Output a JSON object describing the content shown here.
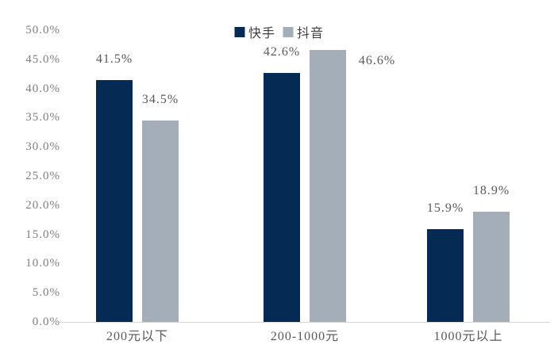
{
  "chart_data": {
    "type": "bar",
    "title": "",
    "categories": [
      "200元以下",
      "200-1000元",
      "1000元以上"
    ],
    "series": [
      {
        "name": "快手",
        "color": "#052a54",
        "values": [
          41.5,
          42.6,
          15.9
        ],
        "labels": [
          "41.5%",
          "42.6%",
          "15.9%"
        ],
        "label_positions": [
          "above",
          "above",
          "above"
        ]
      },
      {
        "name": "抖音",
        "color": "#a4aeb8",
        "values": [
          34.5,
          46.6,
          18.9
        ],
        "labels": [
          "34.5%",
          "46.6%",
          "18.9%"
        ],
        "label_positions": [
          "above",
          "right",
          "above"
        ]
      }
    ],
    "y_axis": {
      "min": 0,
      "max": 50,
      "step": 5,
      "tick_labels": [
        "0.0%",
        "5.0%",
        "10.0%",
        "15.0%",
        "20.0%",
        "25.0%",
        "30.0%",
        "35.0%",
        "40.0%",
        "45.0%",
        "50.0%"
      ]
    },
    "legend_position": "top-center",
    "grid": false,
    "colors": {
      "kuaishou_bar": "#052a54",
      "douyin_bar": "#a4aeb8",
      "axis_line": "#d6d6d6",
      "tick_text": "#7f7f7f",
      "data_label_text": "#595959",
      "legend_text": "#3f3f3f",
      "background": "#ffffff"
    }
  }
}
